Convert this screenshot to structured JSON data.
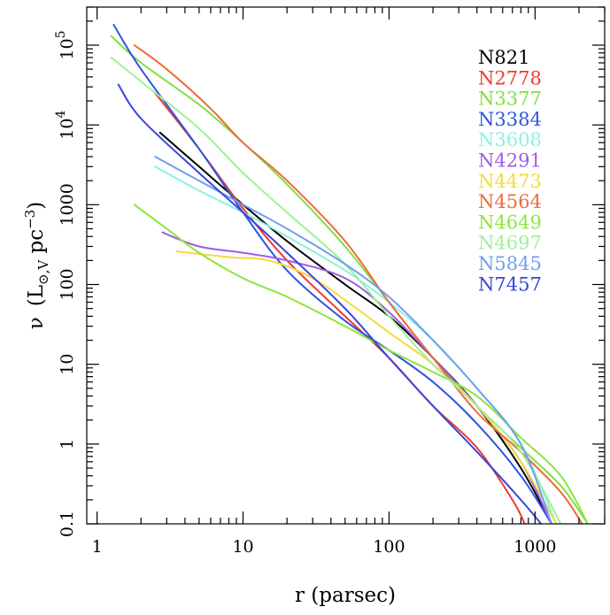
{
  "chart_data": {
    "type": "line",
    "title": "",
    "xlabel": "r (parsec)",
    "ylabel_symbol": "ν",
    "ylabel_units": "(L",
    "ylabel_sub": "⊙,V",
    "ylabel_units2": " pc",
    "ylabel_sup": "−3",
    "ylabel_close": ")",
    "xscale": "log",
    "yscale": "log",
    "xlim": [
      0.85,
      3000
    ],
    "ylim": [
      0.1,
      300000
    ],
    "legend_position": "top-right",
    "x_ticks": [
      {
        "value": 1,
        "label": "1"
      },
      {
        "value": 10,
        "label": "10"
      },
      {
        "value": 100,
        "label": "100"
      },
      {
        "value": 1000,
        "label": "1000"
      }
    ],
    "y_ticks": [
      {
        "value": 0.1,
        "label": "0.1"
      },
      {
        "value": 1,
        "label": "1"
      },
      {
        "value": 10,
        "label": "10"
      },
      {
        "value": 100,
        "label": "100"
      },
      {
        "value": 1000,
        "label": "1000"
      },
      {
        "value": 10000,
        "label": "10",
        "sup": "4"
      },
      {
        "value": 100000,
        "label": "10",
        "sup": "5"
      }
    ],
    "series": [
      {
        "name": "N821",
        "color": "#000000",
        "x": [
          2.7,
          5,
          10,
          20,
          50,
          100,
          200,
          400,
          800,
          1300
        ],
        "y": [
          8000,
          3000,
          1000,
          350,
          100,
          40,
          12,
          3,
          0.5,
          0.1
        ]
      },
      {
        "name": "N2778",
        "color": "#ee3b2f",
        "x": [
          2.5,
          5,
          10,
          20,
          50,
          100,
          200,
          400,
          700,
          850
        ],
        "y": [
          25000,
          5000,
          900,
          200,
          40,
          12,
          3,
          0.9,
          0.2,
          0.1
        ]
      },
      {
        "name": "N3377",
        "color": "#7fe040",
        "x": [
          1.25,
          2,
          5,
          10,
          20,
          50,
          100,
          200,
          400,
          800,
          1500,
          2300
        ],
        "y": [
          130000,
          60000,
          18000,
          6000,
          1800,
          300,
          60,
          12,
          3,
          0.9,
          0.3,
          0.1
        ]
      },
      {
        "name": "N3384",
        "color": "#2e55e0",
        "x": [
          1.3,
          2,
          5,
          10,
          20,
          50,
          100,
          200,
          400,
          800,
          1300
        ],
        "y": [
          180000,
          50000,
          5000,
          800,
          150,
          35,
          15,
          6,
          1.8,
          0.4,
          0.1
        ]
      },
      {
        "name": "N3608",
        "color": "#8ef0e0",
        "x": [
          2.5,
          5,
          10,
          20,
          50,
          100,
          200,
          400,
          800,
          1400
        ],
        "y": [
          3000,
          1500,
          800,
          400,
          150,
          60,
          20,
          5,
          1,
          0.1
        ]
      },
      {
        "name": "N4291",
        "color": "#9f5be8",
        "x": [
          2.8,
          5,
          10,
          20,
          50,
          100,
          200,
          400,
          800,
          1300
        ],
        "y": [
          450,
          300,
          250,
          200,
          120,
          45,
          12,
          3,
          0.6,
          0.1
        ]
      },
      {
        "name": "N4473",
        "color": "#f5d93a",
        "x": [
          3.5,
          8,
          15,
          30,
          60,
          100,
          200,
          400,
          800,
          1400
        ],
        "y": [
          260,
          220,
          200,
          120,
          50,
          25,
          10,
          3,
          0.6,
          0.1
        ]
      },
      {
        "name": "N4564",
        "color": "#ee6a3a",
        "x": [
          1.8,
          3,
          6,
          10,
          20,
          50,
          100,
          200,
          400,
          800,
          1500,
          2100
        ],
        "y": [
          100000,
          50000,
          16000,
          6000,
          2000,
          350,
          60,
          12,
          2.5,
          0.8,
          0.25,
          0.1
        ]
      },
      {
        "name": "N4649",
        "color": "#8fe43a",
        "x": [
          1.8,
          3,
          5,
          10,
          20,
          50,
          100,
          200,
          400,
          800,
          1500,
          2300
        ],
        "y": [
          1000,
          500,
          250,
          120,
          70,
          30,
          15,
          8,
          4,
          1.2,
          0.4,
          0.1
        ]
      },
      {
        "name": "N4697",
        "color": "#9ef09a",
        "x": [
          1.25,
          2,
          5,
          10,
          20,
          50,
          100,
          200,
          400,
          800,
          1500
        ],
        "y": [
          70000,
          35000,
          9000,
          2500,
          800,
          180,
          40,
          10,
          3,
          0.8,
          0.1
        ]
      },
      {
        "name": "N5845",
        "color": "#6fa0f0",
        "x": [
          2.5,
          5,
          10,
          20,
          50,
          100,
          200,
          400,
          800,
          1300
        ],
        "y": [
          4000,
          2000,
          1000,
          500,
          180,
          70,
          20,
          5,
          1,
          0.1
        ]
      },
      {
        "name": "N7457",
        "color": "#3546dc",
        "x": [
          1.4,
          2,
          5,
          10,
          20,
          50,
          100,
          200,
          400,
          800,
          1100
        ],
        "y": [
          32000,
          12000,
          2500,
          800,
          250,
          50,
          12,
          3,
          0.8,
          0.2,
          0.1
        ]
      }
    ]
  }
}
